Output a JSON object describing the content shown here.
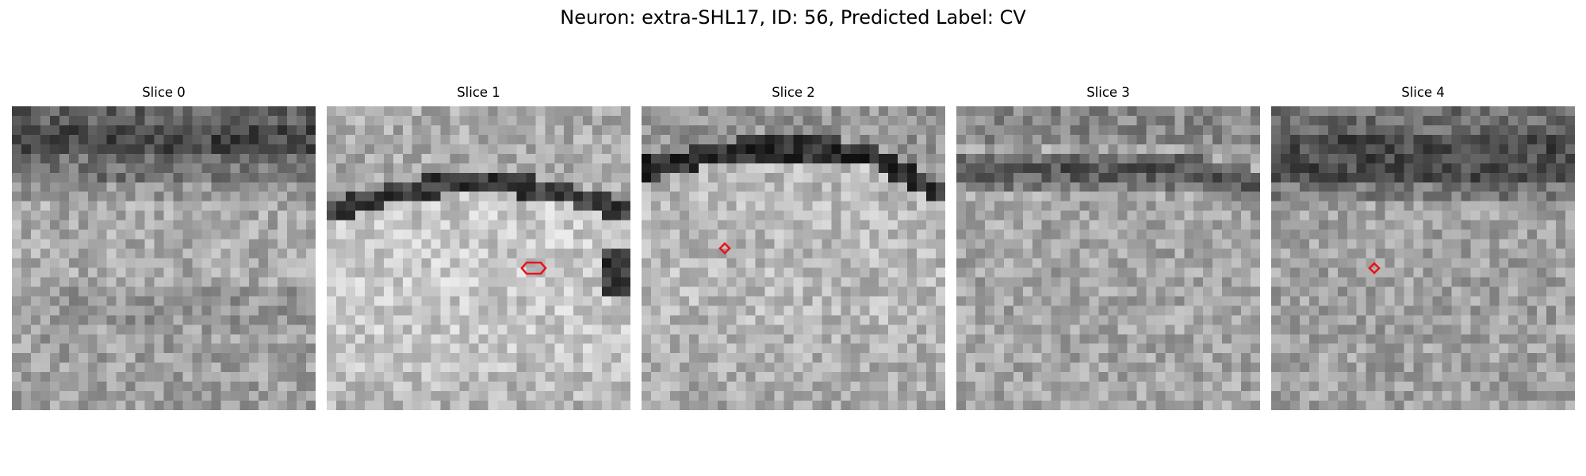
{
  "figure": {
    "title": "Neuron: extra-SHL17, ID: 56, Predicted Label: CV"
  },
  "marker_color": "#e8141c",
  "panels": [
    {
      "title": "Slice 0"
    },
    {
      "title": "Slice 1"
    },
    {
      "title": "Slice 2"
    },
    {
      "title": "Slice 3"
    },
    {
      "title": "Slice 4"
    }
  ]
}
